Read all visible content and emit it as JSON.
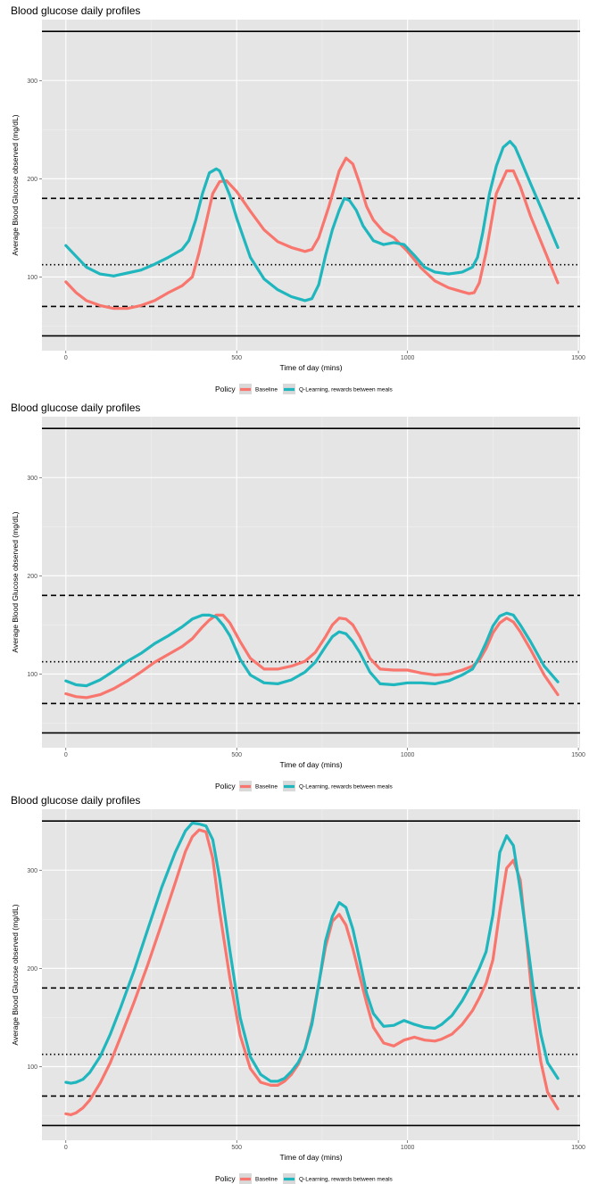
{
  "colors": {
    "baseline": "#F8766D",
    "qlearning": "#1FB6BE",
    "panel": "#E5E5E5",
    "grid": "#FFFFFF"
  },
  "legend": {
    "title": "Policy",
    "baseline_label": "Baseline",
    "qlearning_label": "Q-Learning, rewards between meals"
  },
  "chart_data": [
    {
      "type": "line",
      "title": "Blood glucose daily profiles",
      "xlabel": "Time of day (mins)",
      "ylabel": "Average Blood Glucose observed (mg/dL)",
      "xlim": [
        -70,
        1505
      ],
      "ylim": [
        25,
        362
      ],
      "x_ticks": [
        0,
        500,
        1000,
        1500
      ],
      "y_ticks": [
        100,
        200,
        300
      ],
      "hlines": [
        {
          "y": 40,
          "style": "solid"
        },
        {
          "y": 350,
          "style": "solid"
        },
        {
          "y": 70,
          "style": "dashed"
        },
        {
          "y": 180,
          "style": "dashed"
        },
        {
          "y": 112.5,
          "style": "dotted"
        }
      ],
      "legend_position": "bottom",
      "series": [
        {
          "name": "Baseline",
          "x": [
            0,
            30,
            60,
            100,
            140,
            180,
            220,
            260,
            300,
            340,
            370,
            390,
            410,
            430,
            450,
            470,
            500,
            540,
            580,
            620,
            660,
            700,
            720,
            740,
            770,
            800,
            820,
            840,
            860,
            880,
            900,
            930,
            960,
            1000,
            1040,
            1080,
            1120,
            1160,
            1180,
            1195,
            1210,
            1230,
            1260,
            1290,
            1310,
            1330,
            1360,
            1400,
            1440
          ],
          "values": [
            95,
            84,
            76,
            71,
            68,
            68,
            71,
            76,
            84,
            91,
            100,
            125,
            155,
            185,
            197,
            198,
            187,
            167,
            148,
            136,
            130,
            126,
            128,
            140,
            172,
            208,
            221,
            215,
            195,
            172,
            158,
            146,
            140,
            126,
            109,
            96,
            89,
            85,
            83,
            84,
            94,
            125,
            185,
            208,
            208,
            192,
            162,
            128,
            94
          ]
        },
        {
          "name": "Q-Learning, rewards between meals",
          "x": [
            0,
            30,
            60,
            100,
            140,
            180,
            220,
            260,
            300,
            340,
            360,
            380,
            400,
            420,
            440,
            450,
            460,
            480,
            500,
            540,
            580,
            620,
            660,
            700,
            720,
            740,
            760,
            780,
            800,
            815,
            830,
            850,
            870,
            900,
            930,
            960,
            990,
            1020,
            1050,
            1080,
            1120,
            1160,
            1190,
            1205,
            1220,
            1240,
            1260,
            1280,
            1300,
            1315,
            1330,
            1360,
            1400,
            1440
          ],
          "values": [
            132,
            121,
            110,
            103,
            101,
            104,
            107,
            113,
            120,
            128,
            137,
            158,
            185,
            206,
            210,
            208,
            200,
            183,
            160,
            120,
            98,
            87,
            80,
            76,
            78,
            92,
            122,
            148,
            168,
            180,
            178,
            168,
            152,
            137,
            133,
            135,
            133,
            122,
            110,
            105,
            103,
            105,
            110,
            120,
            145,
            185,
            213,
            232,
            238,
            232,
            220,
            195,
            163,
            130
          ]
        }
      ]
    },
    {
      "type": "line",
      "title": "Blood glucose daily profiles",
      "xlabel": "Time of day (mins)",
      "ylabel": "Average Blood Glucose observed (mg/dL)",
      "xlim": [
        -70,
        1505
      ],
      "ylim": [
        25,
        362
      ],
      "x_ticks": [
        0,
        500,
        1000,
        1500
      ],
      "y_ticks": [
        100,
        200,
        300
      ],
      "hlines": [
        {
          "y": 40,
          "style": "solid"
        },
        {
          "y": 350,
          "style": "solid"
        },
        {
          "y": 70,
          "style": "dashed"
        },
        {
          "y": 180,
          "style": "dashed"
        },
        {
          "y": 112.5,
          "style": "dotted"
        }
      ],
      "legend_position": "bottom",
      "series": [
        {
          "name": "Baseline",
          "x": [
            0,
            30,
            60,
            100,
            140,
            180,
            220,
            260,
            300,
            340,
            370,
            400,
            420,
            440,
            460,
            480,
            510,
            540,
            580,
            620,
            660,
            700,
            730,
            760,
            780,
            800,
            820,
            840,
            860,
            890,
            920,
            960,
            1000,
            1040,
            1080,
            1120,
            1160,
            1190,
            1210,
            1230,
            1250,
            1270,
            1290,
            1310,
            1330,
            1360,
            1400,
            1440
          ],
          "values": [
            80,
            77,
            76,
            79,
            85,
            93,
            102,
            112,
            120,
            128,
            136,
            148,
            155,
            160,
            160,
            152,
            133,
            116,
            105,
            105,
            108,
            113,
            122,
            138,
            150,
            157,
            156,
            150,
            138,
            116,
            105,
            104,
            104,
            101,
            99,
            100,
            104,
            108,
            114,
            126,
            142,
            152,
            157,
            153,
            143,
            125,
            99,
            79
          ]
        },
        {
          "name": "Q-Learning, rewards between meals",
          "x": [
            0,
            30,
            60,
            100,
            140,
            180,
            220,
            260,
            300,
            340,
            370,
            400,
            420,
            440,
            460,
            480,
            510,
            540,
            580,
            620,
            660,
            700,
            730,
            760,
            780,
            800,
            820,
            840,
            860,
            890,
            920,
            960,
            1000,
            1040,
            1080,
            1120,
            1160,
            1190,
            1210,
            1230,
            1250,
            1270,
            1290,
            1310,
            1330,
            1360,
            1400,
            1440
          ],
          "values": [
            93,
            89,
            88,
            94,
            103,
            113,
            121,
            131,
            139,
            148,
            156,
            160,
            160,
            158,
            150,
            139,
            115,
            99,
            91,
            90,
            94,
            102,
            112,
            128,
            138,
            143,
            141,
            133,
            122,
            102,
            90,
            89,
            91,
            91,
            90,
            93,
            99,
            105,
            117,
            132,
            149,
            159,
            162,
            160,
            150,
            133,
            108,
            92
          ]
        }
      ]
    },
    {
      "type": "line",
      "title": "Blood glucose daily profiles",
      "xlabel": "Time of day (mins)",
      "ylabel": "Average Blood Glucose observed (mg/dL)",
      "xlim": [
        -70,
        1505
      ],
      "ylim": [
        25,
        362
      ],
      "x_ticks": [
        0,
        500,
        1000,
        1500
      ],
      "y_ticks": [
        100,
        200,
        300
      ],
      "hlines": [
        {
          "y": 40,
          "style": "solid"
        },
        {
          "y": 350,
          "style": "solid"
        },
        {
          "y": 70,
          "style": "dashed"
        },
        {
          "y": 180,
          "style": "dashed"
        },
        {
          "y": 112.5,
          "style": "dotted"
        }
      ],
      "legend_position": "bottom",
      "series": [
        {
          "name": "Baseline",
          "x": [
            0,
            15,
            30,
            50,
            70,
            100,
            130,
            160,
            200,
            240,
            280,
            320,
            350,
            370,
            390,
            410,
            430,
            450,
            480,
            510,
            540,
            570,
            600,
            620,
            640,
            660,
            680,
            700,
            720,
            740,
            760,
            780,
            800,
            820,
            840,
            860,
            880,
            900,
            930,
            960,
            990,
            1020,
            1050,
            1080,
            1100,
            1130,
            1160,
            1190,
            1210,
            1230,
            1250,
            1270,
            1290,
            1310,
            1330,
            1350,
            1370,
            1390,
            1410,
            1440
          ],
          "values": [
            52,
            51,
            53,
            58,
            66,
            83,
            104,
            130,
            166,
            204,
            245,
            287,
            319,
            334,
            341,
            339,
            312,
            258,
            190,
            132,
            98,
            84,
            81,
            81,
            85,
            92,
            102,
            118,
            146,
            184,
            222,
            248,
            255,
            244,
            220,
            192,
            165,
            140,
            124,
            121,
            127,
            130,
            127,
            126,
            128,
            133,
            143,
            157,
            170,
            185,
            209,
            258,
            302,
            310,
            290,
            223,
            152,
            105,
            74,
            57
          ]
        },
        {
          "name": "Q-Learning, rewards between meals",
          "x": [
            0,
            15,
            30,
            50,
            70,
            100,
            130,
            160,
            200,
            240,
            280,
            320,
            350,
            370,
            390,
            410,
            430,
            450,
            480,
            510,
            540,
            570,
            600,
            620,
            640,
            660,
            680,
            700,
            720,
            740,
            760,
            780,
            800,
            820,
            840,
            860,
            880,
            900,
            930,
            960,
            990,
            1020,
            1050,
            1080,
            1100,
            1130,
            1160,
            1190,
            1210,
            1230,
            1250,
            1270,
            1290,
            1310,
            1330,
            1350,
            1370,
            1390,
            1410,
            1440
          ],
          "values": [
            84,
            83,
            84,
            87,
            94,
            110,
            133,
            160,
            198,
            240,
            282,
            318,
            340,
            348,
            347,
            345,
            331,
            292,
            218,
            150,
            110,
            92,
            85,
            85,
            88,
            95,
            104,
            118,
            143,
            183,
            228,
            253,
            267,
            262,
            240,
            208,
            175,
            154,
            141,
            142,
            147,
            143,
            140,
            139,
            143,
            152,
            167,
            186,
            200,
            217,
            255,
            318,
            335,
            325,
            280,
            228,
            175,
            133,
            104,
            88
          ]
        }
      ]
    }
  ]
}
